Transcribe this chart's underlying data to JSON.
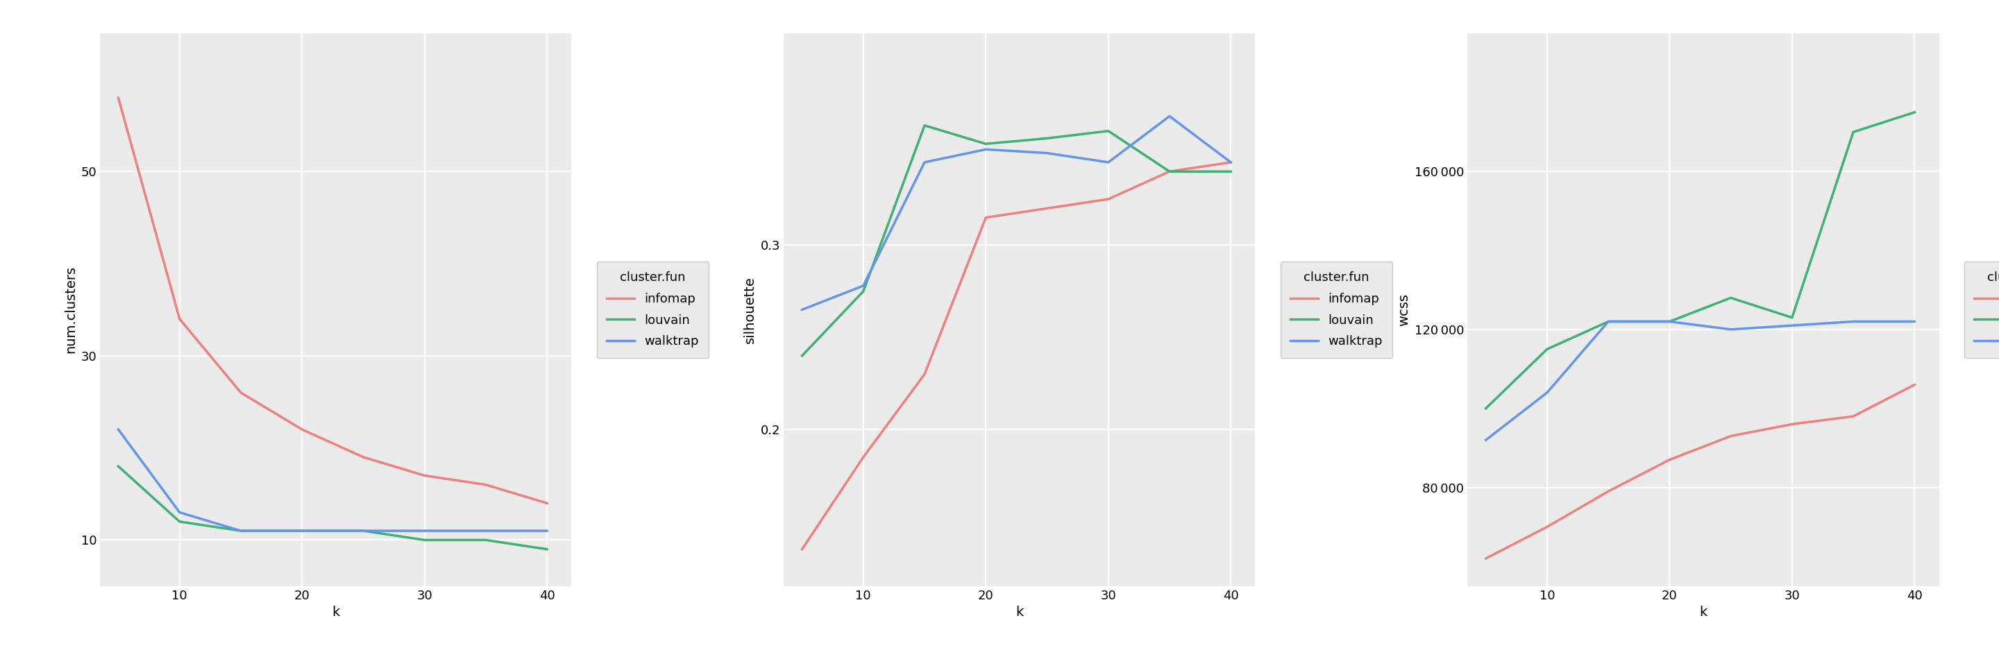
{
  "k": [
    5,
    10,
    15,
    20,
    25,
    30,
    35,
    40
  ],
  "num_clusters": {
    "infomap": [
      58,
      34,
      26,
      22,
      19,
      17,
      16,
      14
    ],
    "louvain": [
      18,
      12,
      11,
      11,
      11,
      10,
      10,
      9
    ],
    "walktrap": [
      22,
      13,
      11,
      11,
      11,
      11,
      11,
      11
    ]
  },
  "silhouette": {
    "infomap": [
      0.135,
      0.185,
      0.23,
      0.315,
      0.32,
      0.325,
      0.34,
      0.345
    ],
    "louvain": [
      0.24,
      0.275,
      0.365,
      0.355,
      0.358,
      0.362,
      0.34,
      0.34
    ],
    "walktrap": [
      0.265,
      0.278,
      0.345,
      0.352,
      0.35,
      0.345,
      0.37,
      0.345
    ]
  },
  "wcss": {
    "infomap": [
      62000,
      70000,
      79000,
      87000,
      93000,
      96000,
      98000,
      106000
    ],
    "louvain": [
      100000,
      115000,
      122000,
      122000,
      128000,
      123000,
      170000,
      175000
    ],
    "walktrap": [
      92000,
      104000,
      122000,
      122000,
      120000,
      121000,
      122000,
      122000
    ]
  },
  "colors": {
    "infomap": "#F08080",
    "louvain": "#3CB371",
    "walktrap": "#6495ED"
  },
  "background_color": "#EBEBEB",
  "grid_color": "#FFFFFF",
  "linewidth": 2.5,
  "plot1_ylim": [
    5,
    65
  ],
  "plot1_yticks": [
    10,
    30,
    50
  ],
  "plot2_ylim": [
    0.115,
    0.415
  ],
  "plot2_yticks": [
    0.2,
    0.3
  ],
  "plot3_ylim": [
    55000,
    195000
  ],
  "plot3_yticks": [
    80000,
    120000,
    160000
  ],
  "xticks": [
    10,
    20,
    30,
    40
  ],
  "xlim": [
    3.5,
    42
  ]
}
